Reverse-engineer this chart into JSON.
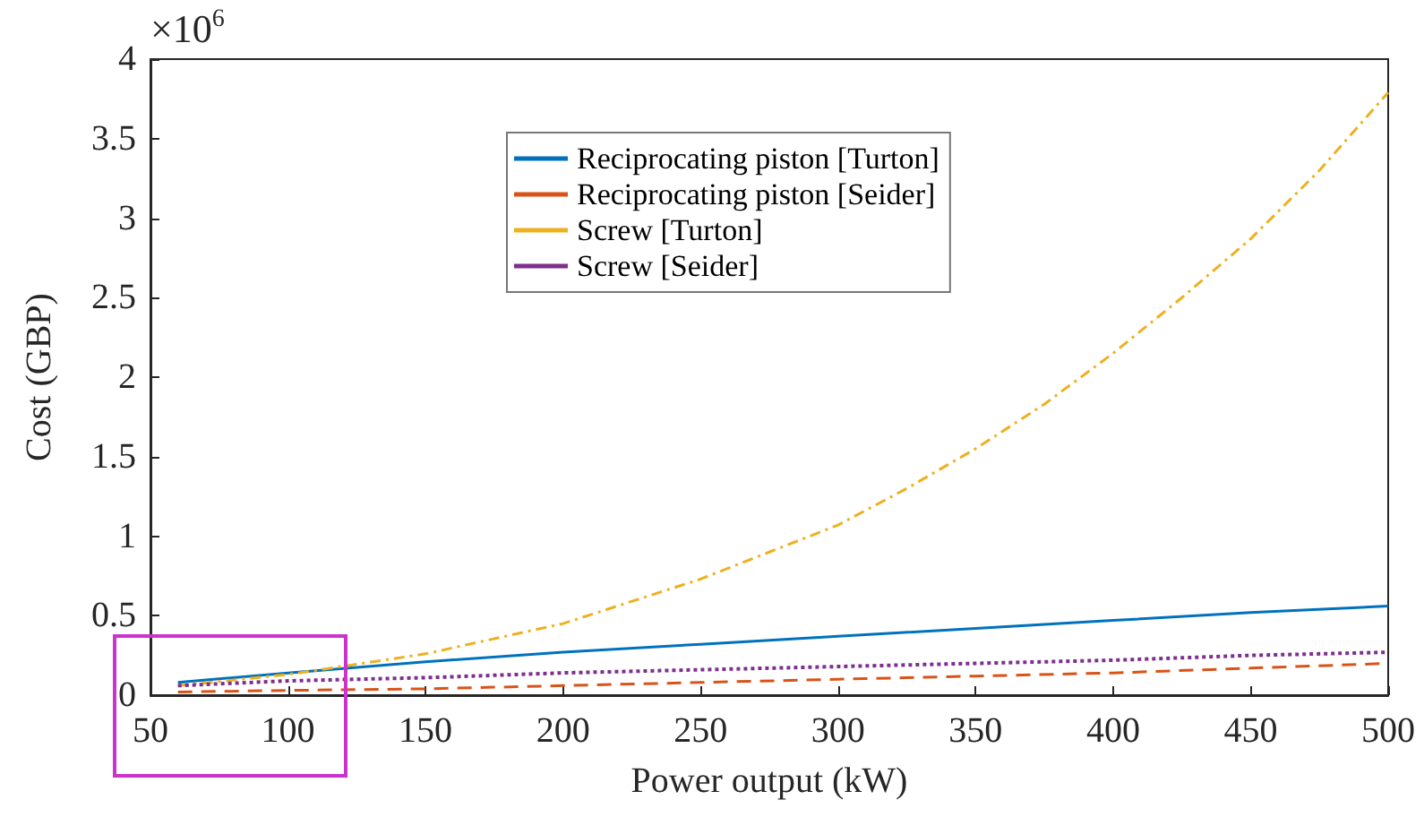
{
  "chart_data": {
    "type": "line",
    "xlabel": "Power output (kW)",
    "ylabel": "Cost (GBP)",
    "annotations": [
      "×10$^{6}$"
    ],
    "xlim": [
      50,
      500
    ],
    "xticks": [
      50,
      100,
      150,
      200,
      250,
      300,
      350,
      400,
      450,
      500
    ],
    "ylim": [
      0,
      4
    ],
    "yticks": [
      0,
      0.5,
      1,
      1.5,
      2,
      2.5,
      3,
      3.5,
      4
    ],
    "grid": false,
    "legend": "top",
    "marker": "none",
    "series": [
      {
        "name": "Reciprocating piston [Turton]",
        "color": "#0072bd",
        "line_style": "solid",
        "x": [
          60,
          100,
          150,
          200,
          250,
          300,
          350,
          400,
          450,
          500
        ],
        "values": [
          0.08,
          0.14,
          0.21,
          0.27,
          0.32,
          0.37,
          0.42,
          0.47,
          0.52,
          0.56
        ]
      },
      {
        "name": "Reciprocating piston [Seider]",
        "color": "#d95319",
        "line_style": "dashed",
        "x": [
          60,
          100,
          150,
          200,
          250,
          300,
          350,
          400,
          450,
          500
        ],
        "values": [
          0.02,
          0.03,
          0.04,
          0.06,
          0.08,
          0.1,
          0.12,
          0.14,
          0.17,
          0.2
        ]
      },
      {
        "name": "Screw [Turton]",
        "color": "#edb120",
        "line_style": "dashdot",
        "x": [
          60,
          100,
          150,
          200,
          250,
          275,
          300,
          325,
          350,
          375,
          400,
          425,
          450,
          475,
          500
        ],
        "values": [
          0.06,
          0.13,
          0.26,
          0.45,
          0.73,
          0.9,
          1.07,
          1.3,
          1.55,
          1.83,
          2.15,
          2.5,
          2.87,
          3.3,
          3.79
        ]
      },
      {
        "name": "Screw [Seider]",
        "color": "#7e2f8e",
        "line_style": "dotted",
        "x": [
          60,
          100,
          150,
          200,
          250,
          300,
          350,
          400,
          450,
          500
        ],
        "values": [
          0.06,
          0.09,
          0.11,
          0.14,
          0.16,
          0.18,
          0.2,
          0.22,
          0.25,
          0.27
        ]
      }
    ]
  }
}
